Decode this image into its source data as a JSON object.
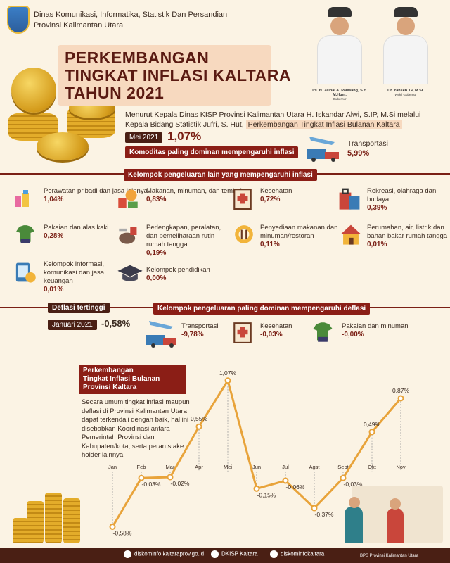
{
  "header": {
    "agency_line1": "Dinas Komunikasi, Informatika, Statistik Dan Persandian",
    "agency_line2": "Provinsi Kalimantan Utara",
    "title_line1": "PERKEMBANGAN",
    "title_line2": "TINGKAT INFLASI KALTARA",
    "title_line3": "TAHUN 2021",
    "official1_name": "Drs. H. Zainal A. Paliwang, S.H., M.Hum.",
    "official1_role": "Gubernur",
    "official2_name": "Dr. Yansen TP, M.Si.",
    "official2_role": "Wakil Gubernur"
  },
  "intro": {
    "text": "Menurut Kepala Dinas KISP Provinsi Kalimantan Utara H. Iskandar Alwi, S.IP, M.Si melalui Kepala Bidang Statistik Jufri, S. Hut,",
    "highlight": "Perkembangan Tingkat Inflasi Bulanan Kaltara",
    "period": "Mei 2021",
    "value": "1,07%",
    "dominant_label": "Komoditas paling dominan mempengaruhi inflasi",
    "dominant_name": "Transportasi",
    "dominant_value": "5,99%"
  },
  "other_groups_title": "Kelompok pengeluaran lain yang mempengaruhi inflasi",
  "groups": [
    {
      "label": "Perawatan pribadi dan jasa lainnya",
      "value": "1,04%"
    },
    {
      "label": "Makanan, minuman, dan tembakau",
      "value": "0,83%"
    },
    {
      "label": "Kesehatan",
      "value": "0,72%"
    },
    {
      "label": "Rekreasi, olahraga dan budaya",
      "value": "0,39%"
    },
    {
      "label": "Pakaian dan alas kaki",
      "value": "0,28%"
    },
    {
      "label": "Perlengkapan, peralatan, dan pemeliharaan rutin rumah tangga",
      "value": "0,19%"
    },
    {
      "label": "Penyediaan makanan dan minuman/restoran",
      "value": "0,11%"
    },
    {
      "label": "Perumahan, air, listrik dan bahan bakar rumah tangga",
      "value": "0,01%"
    },
    {
      "label": "Kelompok informasi, komunikasi dan jasa keuangan",
      "value": "0,01%"
    },
    {
      "label": "Kelompok pendidikan",
      "value": "0,00%"
    }
  ],
  "deflation": {
    "label": "Deflasi tertinggi",
    "period": "Januari 2021",
    "value": "-0,58%",
    "dominant_title": "Kelompok pengeluaran paling dominan mempengaruhi deflasi",
    "items": [
      {
        "label": "Transportasi",
        "value": "-9,78%"
      },
      {
        "label": "Kesehatan",
        "value": "-0,03%"
      },
      {
        "label": "Pakaian dan minuman",
        "value": "-0,00%"
      }
    ]
  },
  "chart_section": {
    "title_line1": "Perkembangan",
    "title_line2": "Tingkat Inflasi Bulanan",
    "title_line3": "Provinsi Kaltara",
    "description": "Secara umum tingkat inflasi maupun deflasi di Provinsi Kalimantan Utara dapat terkendali dengan baik, hal ini disebabkan Koordinasi antara Pemerintah Provinsi dan Kabupaten/kota, serta peran stake holder lainnya."
  },
  "chart_data": {
    "type": "line",
    "categories": [
      "Jan",
      "Feb",
      "Mar",
      "Apr",
      "Mei",
      "Jun",
      "Jul",
      "Agst",
      "Sept",
      "Okt",
      "Nov"
    ],
    "values": [
      -0.58,
      -0.03,
      -0.02,
      0.55,
      1.07,
      -0.15,
      -0.06,
      -0.37,
      -0.03,
      0.49,
      0.87
    ],
    "value_labels": [
      "-0,58%",
      "-0,03%",
      "-0,02%",
      "0,55%",
      "1,07%",
      "-0,15%",
      "-0,06%",
      "-0,37%",
      "-0,03%",
      "0,49%",
      "0,87%"
    ],
    "ylim": [
      -0.6,
      1.1
    ],
    "colors": {
      "line": "#e8a33a",
      "marker": "#e8a33a"
    }
  },
  "footer": {
    "website": "diskominfo.kaltaraprov.go.id",
    "facebook": "DKISP Kaltara",
    "instagram": "diskominfokaltara",
    "source": "BPS Provinsi Kalimantan Utara"
  }
}
